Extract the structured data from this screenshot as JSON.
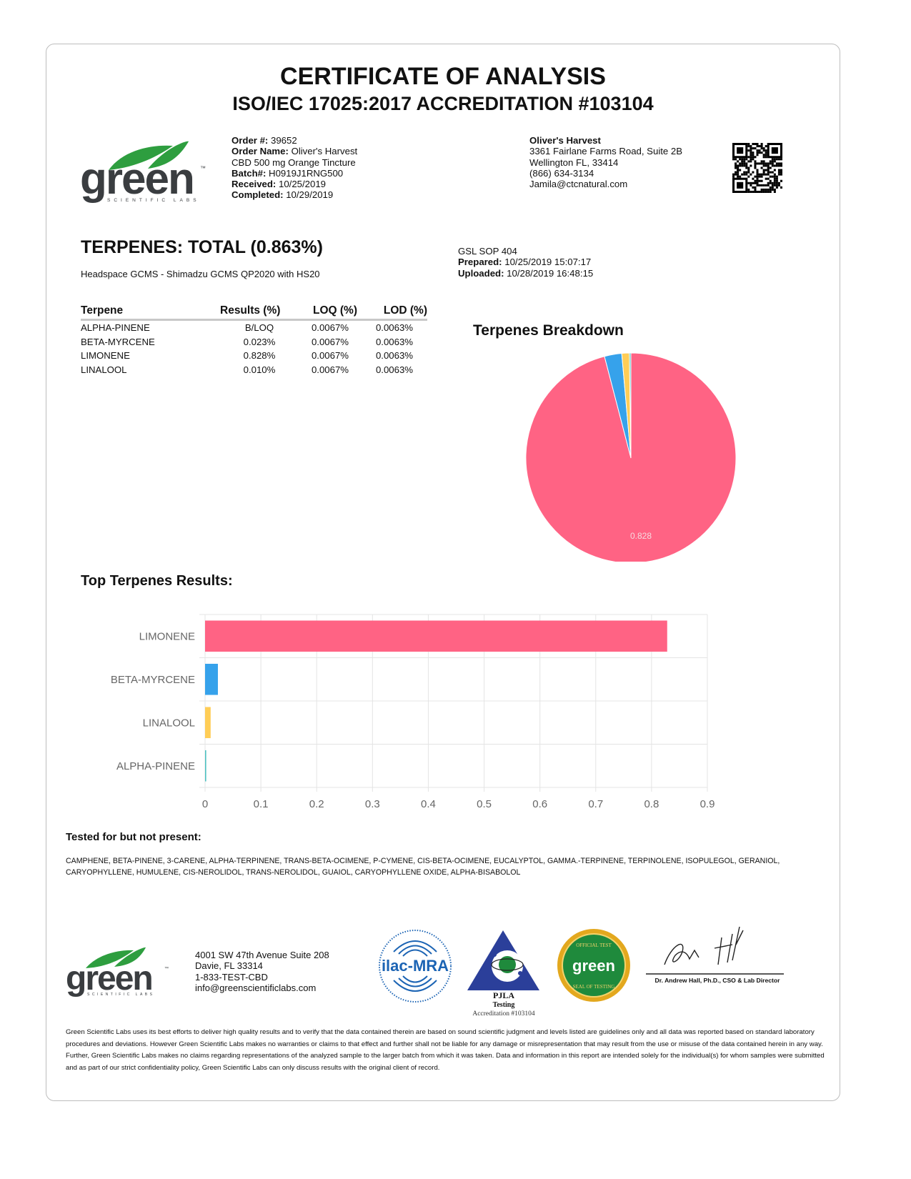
{
  "header": {
    "title": "CERTIFICATE OF ANALYSIS",
    "accreditation": "ISO/IEC 17025:2017 ACCREDITATION #103104"
  },
  "logo": {
    "text": "green",
    "subtext": "SCIENTIFIC LABS",
    "tm": "™"
  },
  "order": {
    "order_no_label": "Order #:",
    "order_no": "39652",
    "order_name_label": "Order Name:",
    "order_name": "Oliver's Harvest",
    "product": "CBD 500 mg Orange Tincture",
    "batch_label": "Batch#:",
    "batch": "H0919J1RNG500",
    "received_label": "Received:",
    "received": "10/25/2019",
    "completed_label": "Completed:",
    "completed": "10/29/2019"
  },
  "client": {
    "name": "Oliver's Harvest",
    "address1": "3361 Fairlane Farms Road, Suite 2B",
    "address2": "Wellington FL, 33414",
    "phone": "(866) 634-3134",
    "email": "Jamila@ctcnatural.com"
  },
  "terpenes": {
    "heading": "TERPENES: TOTAL (0.863%)",
    "method": "Headspace GCMS - Shimadzu GCMS QP2020 with HS20",
    "sop": "GSL SOP 404",
    "prepared_label": "Prepared:",
    "prepared": "10/25/2019 15:07:17",
    "uploaded_label": "Uploaded:",
    "uploaded": "10/28/2019 16:48:15",
    "columns": [
      "Terpene",
      "Results (%)",
      "LOQ (%)",
      "LOD (%)"
    ],
    "rows": [
      [
        "ALPHA-PINENE",
        "B/LOQ",
        "0.0067%",
        "0.0063%"
      ],
      [
        "BETA-MYRCENE",
        "0.023%",
        "0.0067%",
        "0.0063%"
      ],
      [
        "LIMONENE",
        "0.828%",
        "0.0067%",
        "0.0063%"
      ],
      [
        "LINALOOL",
        "0.010%",
        "0.0067%",
        "0.0063%"
      ]
    ]
  },
  "chart_data": [
    {
      "type": "pie",
      "title": "Terpenes Breakdown",
      "categories": [
        "LIMONENE",
        "BETA-MYRCENE",
        "LINALOOL",
        "ALPHA-PINENE"
      ],
      "values": [
        0.828,
        0.023,
        0.01,
        0.002
      ],
      "colors": [
        "#ff6384",
        "#36a2eb",
        "#ffcd56",
        "#4bc0c0"
      ],
      "data_labels": [
        "0.828"
      ]
    },
    {
      "type": "bar",
      "orientation": "horizontal",
      "title": "Top Terpenes Results:",
      "categories": [
        "LIMONENE",
        "BETA-MYRCENE",
        "LINALOOL",
        "ALPHA-PINENE"
      ],
      "values": [
        0.828,
        0.023,
        0.01,
        0.002
      ],
      "colors": [
        "#ff6384",
        "#36a2eb",
        "#ffcd56",
        "#4bc0c0"
      ],
      "xlim": [
        0,
        0.9
      ],
      "xticks": [
        "0",
        "0.1",
        "0.2",
        "0.3",
        "0.4",
        "0.5",
        "0.6",
        "0.7",
        "0.8",
        "0.9"
      ],
      "grid": true
    }
  ],
  "tested": {
    "heading": "Tested for but not present:",
    "list": "CAMPHENE, BETA-PINENE, 3-CARENE, ALPHA-TERPINENE, TRANS-BETA-OCIMENE, P-CYMENE, CIS-BETA-OCIMENE, EUCALYPTOL, GAMMA.-TERPINENE, TERPINOLENE, ISOPULEGOL, GERANIOL, CARYOPHYLLENE, HUMULENE, CIS-NEROLIDOL, TRANS-NEROLIDOL, GUAIOL, CARYOPHYLLENE OXIDE, ALPHA-BISABOLOL"
  },
  "footer": {
    "address1": "4001 SW 47th Avenue Suite 208",
    "address2": "Davie, FL 33314",
    "phone": "1-833-TEST-CBD",
    "email": "info@greenscientificlabs.com",
    "ilac": "ilac-MRA",
    "pjla": "PJLA",
    "pjla_sub": "Testing",
    "pjla_acc": "Accreditation #103104",
    "seal_top": "OFFICIAL TEST",
    "seal_bottom": "SEAL OF TESTING",
    "signer": "Dr. Andrew Hall, Ph.D., CSO & Lab Director",
    "disclaimer": "Green Scientific Labs uses its best efforts to deliver high quality results and to verify that the data contained therein are based on sound scientific judgment and levels listed are guidelines only and all data was reported based on standard laboratory procedures and deviations. However Green Scientific Labs makes no warranties or claims to that effect and further shall not be liable for any damage or misrepresentation that may result from the use or misuse of the data contained herein in any way. Further, Green Scientific Labs makes no claims regarding representations of the analyzed sample to the larger batch from which it was taken. Data and information in this report are intended solely for the individual(s) for whom samples were submitted and as part of our strict confidentiality policy, Green Scientific Labs can only discuss results with the original client of record."
  },
  "colors": {
    "brand_green": "#2e9e3f",
    "logo_gray": "#3a3d40"
  }
}
